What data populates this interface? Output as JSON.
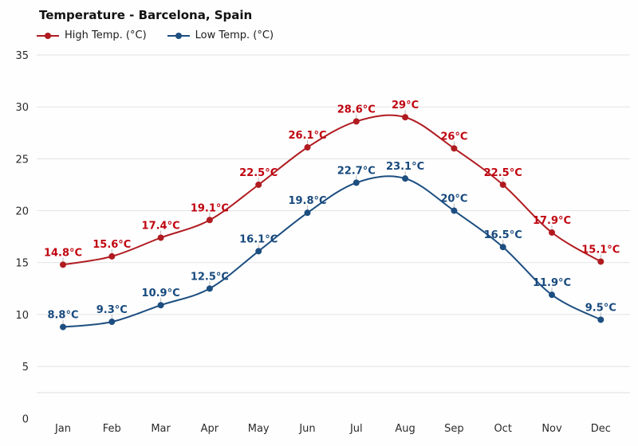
{
  "chart_data": {
    "type": "line",
    "title": "Temperature - Barcelona, Spain",
    "unit_suffix": "°C",
    "categories": [
      "Jan",
      "Feb",
      "Mar",
      "Apr",
      "May",
      "Jun",
      "Jul",
      "Aug",
      "Sep",
      "Oct",
      "Nov",
      "Dec"
    ],
    "series": [
      {
        "name": "High Temp. (°C)",
        "values": [
          14.8,
          15.6,
          17.4,
          19.1,
          22.5,
          26.1,
          28.6,
          29,
          26,
          22.5,
          17.9,
          15.1
        ],
        "color": "#b01b20",
        "label_color": "#c00510"
      },
      {
        "name": "Low Temp. (°C)",
        "values": [
          8.8,
          9.3,
          10.9,
          12.5,
          16.1,
          19.8,
          22.7,
          23.1,
          20,
          16.5,
          11.9,
          9.5
        ],
        "color": "#1c4e80",
        "label_color": "#17497d"
      }
    ],
    "y_axis": {
      "min": 0,
      "max": 35,
      "ticks": [
        0,
        5,
        10,
        15,
        20,
        25,
        30,
        35
      ]
    },
    "x_axis_label": "",
    "y_axis_label": "",
    "legend_position": "top-left",
    "grid": "horizontal",
    "colors": {
      "background": "#fefefe",
      "gridline": "#e3e3e3",
      "axis_text": "#2b2b2b",
      "bottom_border": "#dddddd"
    }
  }
}
